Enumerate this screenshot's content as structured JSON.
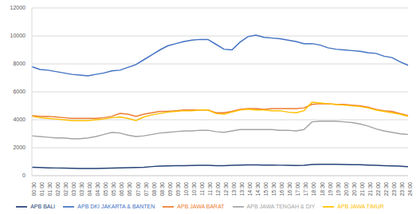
{
  "chart_data": {
    "type": "line",
    "categories": [
      "00:30",
      "01:00",
      "01:30",
      "02:00",
      "02:30",
      "03:00",
      "03:30",
      "04:00",
      "04:30",
      "05:00",
      "05:30",
      "06:00",
      "06:30",
      "07:00",
      "07:30",
      "08:00",
      "08:30",
      "09:00",
      "09:30",
      "10:00",
      "10:30",
      "11:00",
      "11:30",
      "12:00",
      "12:30",
      "13:00",
      "13:30",
      "14:00",
      "14:30",
      "15:00",
      "15:30",
      "16:00",
      "16:30",
      "17:00",
      "17:30",
      "18:00",
      "18:30",
      "19:00",
      "19:30",
      "20:00",
      "20:30",
      "21:00",
      "21:30",
      "22:00",
      "22:30",
      "23:00",
      "23:30",
      "24:00"
    ],
    "series": [
      {
        "name": "APB DKI JAKARTA & BANTEN",
        "color": "#4472c4",
        "values": [
          7800,
          7600,
          7550,
          7450,
          7350,
          7250,
          7200,
          7150,
          7250,
          7350,
          7500,
          7550,
          7750,
          7950,
          8300,
          8650,
          9000,
          9300,
          9450,
          9600,
          9700,
          9750,
          9750,
          9400,
          9050,
          9000,
          9550,
          9950,
          10050,
          9900,
          9850,
          9800,
          9700,
          9600,
          9450,
          9450,
          9350,
          9150,
          9050,
          9000,
          8950,
          8900,
          8800,
          8750,
          8550,
          8450,
          8150,
          7900
        ]
      },
      {
        "name": "APB JAWA BARAT",
        "color": "#ed7d31",
        "values": [
          4300,
          4250,
          4250,
          4200,
          4150,
          4100,
          4100,
          4100,
          4100,
          4150,
          4250,
          4450,
          4400,
          4250,
          4400,
          4500,
          4600,
          4600,
          4650,
          4700,
          4700,
          4700,
          4700,
          4500,
          4500,
          4600,
          4750,
          4800,
          4800,
          4750,
          4800,
          4800,
          4800,
          4800,
          4850,
          5100,
          5150,
          5150,
          5100,
          5100,
          5050,
          5000,
          4900,
          4750,
          4650,
          4600,
          4450,
          4300
        ]
      },
      {
        "name": "APB JAWA TENGAH & DIY",
        "color": "#a5a5a5",
        "values": [
          2850,
          2800,
          2750,
          2700,
          2700,
          2650,
          2650,
          2700,
          2800,
          2950,
          3100,
          3050,
          2900,
          2800,
          2850,
          2950,
          3050,
          3100,
          3150,
          3200,
          3200,
          3250,
          3250,
          3150,
          3100,
          3200,
          3300,
          3300,
          3300,
          3300,
          3300,
          3250,
          3250,
          3200,
          3300,
          3850,
          3900,
          3900,
          3900,
          3850,
          3800,
          3700,
          3550,
          3350,
          3200,
          3100,
          3000,
          2950
        ]
      },
      {
        "name": "APB JAWA TIMUR",
        "color": "#ffc000",
        "values": [
          4250,
          4150,
          4100,
          4050,
          4000,
          3950,
          3950,
          3950,
          4000,
          4050,
          4150,
          4200,
          4100,
          3950,
          4200,
          4350,
          4450,
          4550,
          4600,
          4650,
          4650,
          4700,
          4700,
          4450,
          4400,
          4550,
          4700,
          4750,
          4700,
          4700,
          4650,
          4650,
          4550,
          4500,
          4650,
          5250,
          5200,
          5150,
          5100,
          5050,
          5000,
          4950,
          4850,
          4700,
          4600,
          4500,
          4400,
          4250
        ]
      },
      {
        "name": "APB BALI",
        "color": "#264478",
        "values": [
          600,
          580,
          560,
          550,
          540,
          530,
          520,
          520,
          520,
          530,
          540,
          560,
          570,
          580,
          600,
          650,
          680,
          700,
          710,
          720,
          730,
          740,
          740,
          720,
          720,
          740,
          760,
          770,
          770,
          760,
          760,
          750,
          740,
          730,
          740,
          800,
          820,
          820,
          810,
          800,
          790,
          780,
          760,
          740,
          720,
          700,
          680,
          640
        ]
      }
    ],
    "ylim": [
      0,
      12000
    ],
    "yticks": [
      0,
      2000,
      4000,
      6000,
      8000,
      10000,
      12000
    ],
    "grid": true,
    "legend": "bottom"
  }
}
